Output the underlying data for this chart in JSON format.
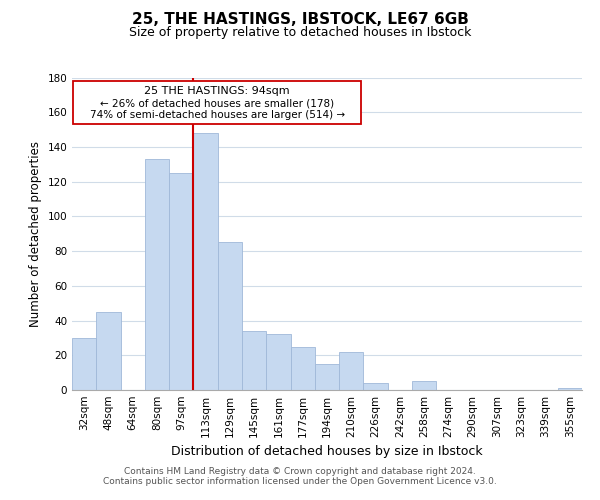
{
  "title": "25, THE HASTINGS, IBSTOCK, LE67 6GB",
  "subtitle": "Size of property relative to detached houses in Ibstock",
  "xlabel": "Distribution of detached houses by size in Ibstock",
  "ylabel": "Number of detached properties",
  "bar_labels": [
    "32sqm",
    "48sqm",
    "64sqm",
    "80sqm",
    "97sqm",
    "113sqm",
    "129sqm",
    "145sqm",
    "161sqm",
    "177sqm",
    "194sqm",
    "210sqm",
    "226sqm",
    "242sqm",
    "258sqm",
    "274sqm",
    "290sqm",
    "307sqm",
    "323sqm",
    "339sqm",
    "355sqm"
  ],
  "bar_values": [
    30,
    45,
    0,
    133,
    125,
    148,
    85,
    34,
    32,
    25,
    15,
    22,
    4,
    0,
    5,
    0,
    0,
    0,
    0,
    0,
    1
  ],
  "bar_color": "#c6d9f0",
  "bar_edge_color": "#a0b8d8",
  "vline_x_index": 4,
  "vline_color": "#cc0000",
  "ylim": [
    0,
    180
  ],
  "yticks": [
    0,
    20,
    40,
    60,
    80,
    100,
    120,
    140,
    160,
    180
  ],
  "annotation_title": "25 THE HASTINGS: 94sqm",
  "annotation_line1": "← 26% of detached houses are smaller (178)",
  "annotation_line2": "74% of semi-detached houses are larger (514) →",
  "annotation_box_color": "#ffffff",
  "annotation_box_edge": "#cc0000",
  "footer_line1": "Contains HM Land Registry data © Crown copyright and database right 2024.",
  "footer_line2": "Contains public sector information licensed under the Open Government Licence v3.0.",
  "background_color": "#ffffff",
  "grid_color": "#d0dce8",
  "title_fontsize": 11,
  "subtitle_fontsize": 9,
  "xlabel_fontsize": 9,
  "ylabel_fontsize": 8.5,
  "tick_fontsize": 7.5,
  "footer_fontsize": 6.5
}
